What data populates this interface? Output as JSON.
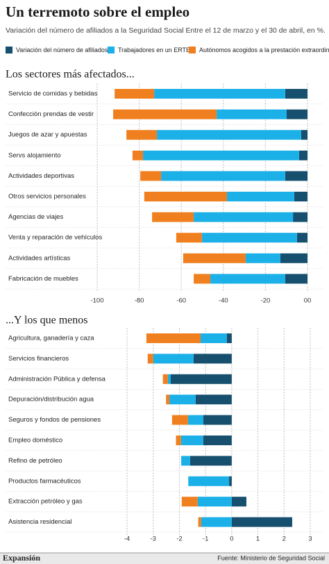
{
  "header": {
    "title": "Un terremoto sobre el empleo",
    "subtitle": "Variación del número de afiliados a la Seguridad Social Entre el 12 de marzo y el 30 de abril, en %."
  },
  "chart_data": [
    {
      "type": "bar",
      "orientation": "horizontal",
      "stacked": true,
      "title": "Los sectores más afectados...",
      "categories": [
        "Servicio de comidas y bebidas",
        "Confección prendas de vestir",
        "Juegos de azar y apuestas",
        "Servs alojamiento",
        "Actividades deportivas",
        "Otros servicios personales",
        "Agencias de viajes",
        "Venta y reparación de  vehículos",
        "Actividades artísticas",
        "Fabricación de muebles"
      ],
      "series": [
        {
          "name": "Variación del número de afiliados",
          "color": "#17506e",
          "values": [
            -10.6,
            -9.9,
            -3,
            -4,
            -10.6,
            -6.3,
            -6.9,
            -5,
            -12.9,
            -10.6
          ]
        },
        {
          "name": "Trabajadores en un ERTE",
          "color": "#1bb0e8",
          "values": [
            -62.3,
            -33.3,
            -68.6,
            -74.2,
            -59,
            -32,
            -47.2,
            -45.2,
            -16.5,
            -35.6
          ]
        },
        {
          "name": "Autónomos acogidos a la prestación extraordinaria",
          "color": "#f0801f",
          "values": [
            -18.8,
            -49.2,
            -14.5,
            -5,
            -9.9,
            -39.3,
            -19.8,
            -12.2,
            -29.7,
            -7.9
          ]
        }
      ],
      "xlim": [
        -100,
        0
      ],
      "xticks": [
        -100,
        -80,
        -60,
        -40,
        -20,
        {
          "value": 0,
          "label": "00"
        }
      ],
      "grid": true
    },
    {
      "type": "bar",
      "orientation": "horizontal",
      "stacked": true,
      "title": "...Y los que menos",
      "categories": [
        "Agricultura, ganadería y caza",
        "Servicios financieros",
        "Administración Pública y defensa",
        "Depuración/distribución agua",
        "Seguros y fondos de pensiones",
        "Empleo doméstico",
        "Refino de petróleo",
        "Productos farmacéuticos",
        "Extracción petróleo y gas",
        "Asistencia residencial"
      ],
      "series": [
        {
          "color": "#17506e",
          "values": [
            -0.19,
            -1.46,
            -2.33,
            -1.38,
            -1.09,
            -1.09,
            -1.59,
            -0.1,
            0.56,
            2.31
          ]
        },
        {
          "color": "#1bb0e8",
          "values": [
            -1.0,
            -1.54,
            -0.11,
            -1.0,
            -0.58,
            -0.85,
            -0.34,
            -1.56,
            -1.3,
            -1.17
          ]
        },
        {
          "color": "#f0801f",
          "values": [
            -2.07,
            -0.21,
            -0.19,
            -0.13,
            -0.61,
            -0.19,
            0,
            0,
            -0.61,
            -0.11
          ]
        }
      ],
      "xlim": [
        -4,
        3
      ],
      "xticks": [
        -4,
        -3,
        -2,
        -1,
        0,
        1,
        2,
        3
      ],
      "grid": true
    }
  ],
  "footer": {
    "brand": "Expansión",
    "source": "Fuente:  Ministerio de Seguridad Social"
  }
}
